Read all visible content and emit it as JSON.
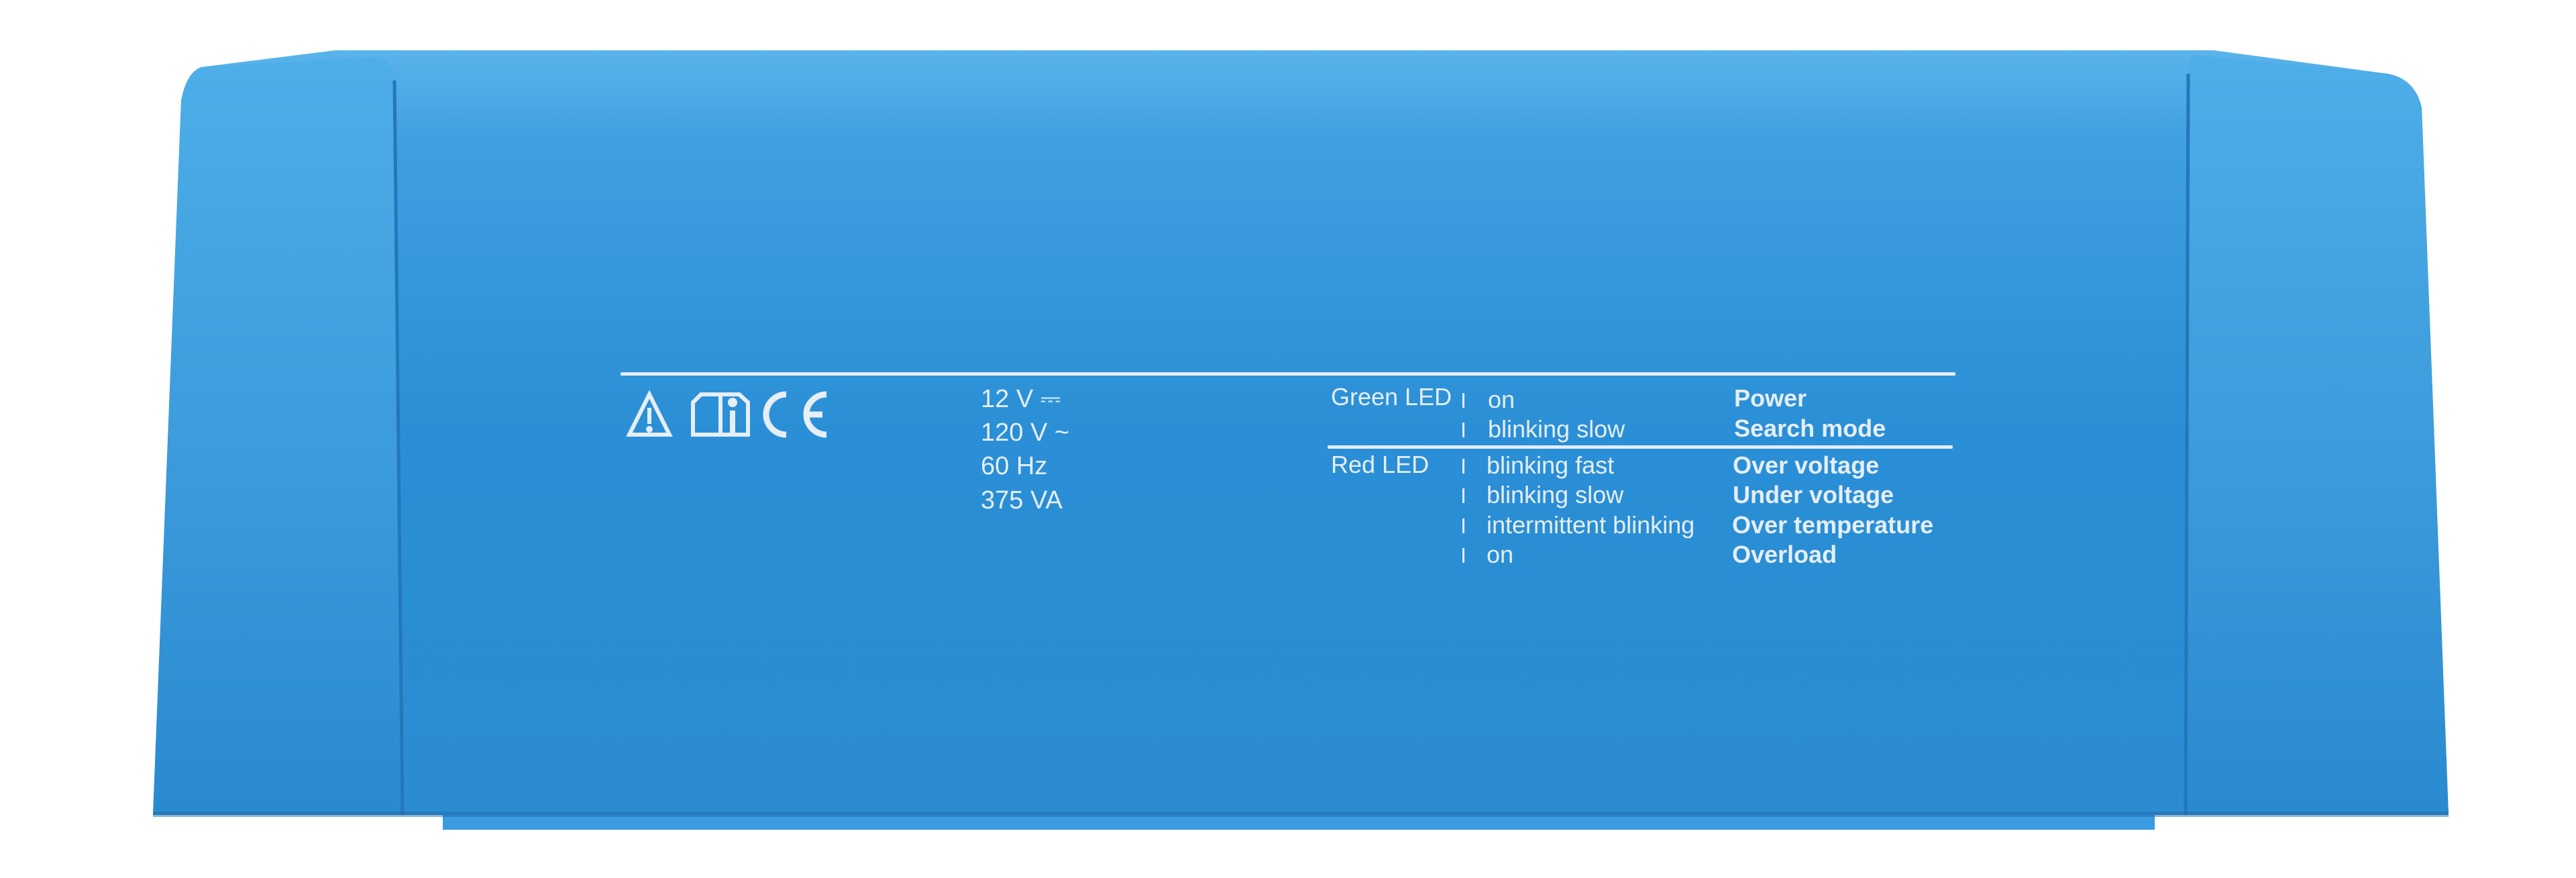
{
  "colors": {
    "body": "#2a8fd6",
    "body_top": "#5ab4ea",
    "print": "#e6eef6"
  },
  "icons": [
    "warning-triangle-icon",
    "read-manual-icon",
    "ce-mark-icon"
  ],
  "ce_mark": "CE",
  "specs": [
    "12 V ⎓",
    "120 V ~",
    "60 Hz",
    "375 VA"
  ],
  "led_table": {
    "green": {
      "label": "Green LED",
      "rows": [
        {
          "state": "on",
          "meaning": "Power"
        },
        {
          "state": "blinking slow",
          "meaning": "Search mode"
        }
      ]
    },
    "red": {
      "label": "Red LED",
      "rows": [
        {
          "state": "blinking fast",
          "meaning": "Over voltage"
        },
        {
          "state": "blinking slow",
          "meaning": "Under voltage"
        },
        {
          "state": "intermittent blinking",
          "meaning": "Over temperature"
        },
        {
          "state": "on",
          "meaning": "Overload"
        }
      ]
    }
  }
}
